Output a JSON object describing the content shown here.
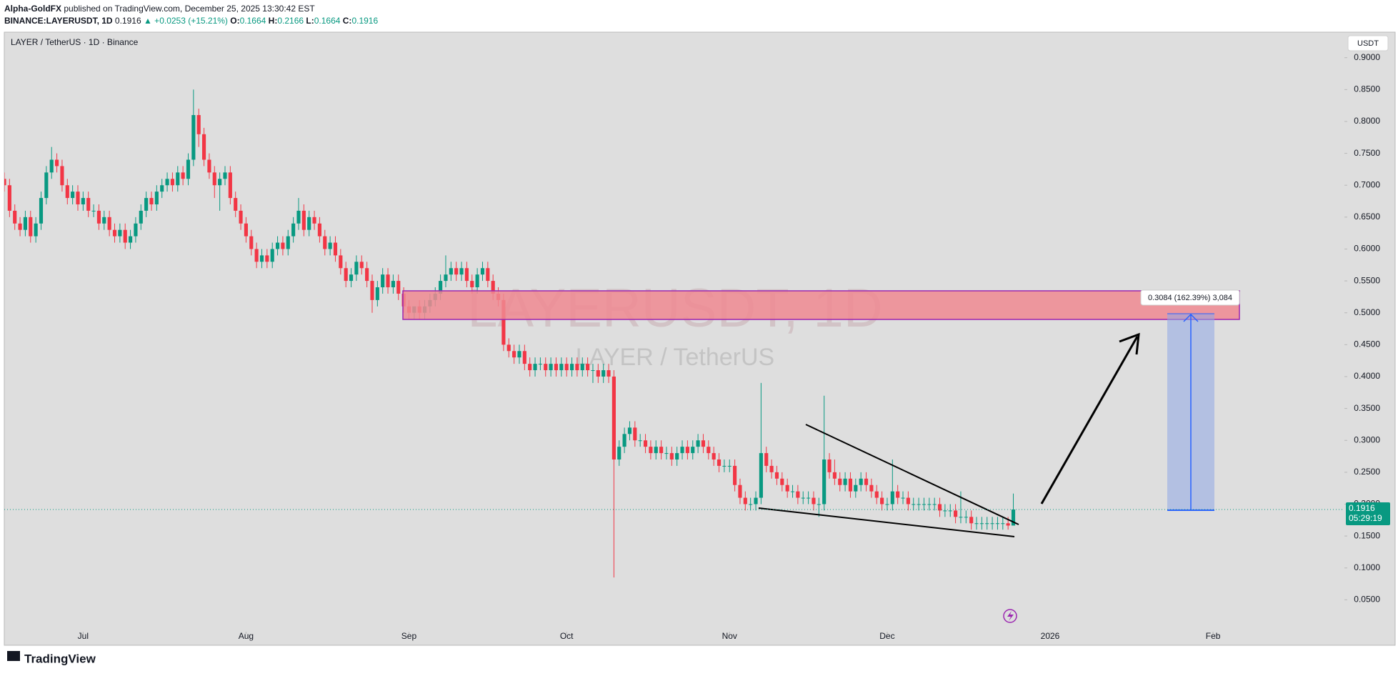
{
  "header": {
    "author": "Alpha-GoldFX",
    "published": "published on TradingView.com, December 25, 2025 13:30:42 EST",
    "symbol": "BINANCE:LAYERUSDT, 1D",
    "price": "0.1916",
    "change": "▲ +0.0253 (+15.21%)",
    "ohlc": [
      {
        "label": "O:",
        "value": "0.1664"
      },
      {
        "label": "H:",
        "value": "0.2166"
      },
      {
        "label": "L:",
        "value": "0.1664"
      },
      {
        "label": "C:",
        "value": "0.1916"
      }
    ]
  },
  "chart_data": {
    "type": "candlestick",
    "legend_text": "LAYER / TetherUS · 1D · Binance",
    "watermark": "LAYERUSDT, 1D",
    "watermark_subtitle": "LAYER / TetherUS",
    "currency_button": "USDT",
    "annotation": "0.3084 (162.39%) 3,084",
    "last_price": 0.1916,
    "countdown": "05:29:19",
    "up_color": "#089981",
    "down_color": "#f23645",
    "grid": false,
    "xlim": [
      0,
      255
    ],
    "ylim": [
      0,
      0.94
    ],
    "xticks": [
      {
        "value": 15,
        "label": "Jul"
      },
      {
        "value": 46,
        "label": "Aug"
      },
      {
        "value": 77,
        "label": "Sep"
      },
      {
        "value": 107,
        "label": "Oct"
      },
      {
        "value": 138,
        "label": "Nov"
      },
      {
        "value": 168,
        "label": "Dec"
      },
      {
        "value": 199,
        "label": "2026"
      },
      {
        "value": 230,
        "label": "Feb"
      }
    ],
    "yticks": [
      {
        "value": 0.05,
        "label": "0.0500"
      },
      {
        "value": 0.1,
        "label": "0.1000"
      },
      {
        "value": 0.15,
        "label": "0.1500"
      },
      {
        "value": 0.2,
        "label": "0.2000"
      },
      {
        "value": 0.25,
        "label": "0.2500"
      },
      {
        "value": 0.3,
        "label": "0.3000"
      },
      {
        "value": 0.35,
        "label": "0.3500"
      },
      {
        "value": 0.4,
        "label": "0.4000"
      },
      {
        "value": 0.45,
        "label": "0.4500"
      },
      {
        "value": 0.5,
        "label": "0.5000"
      },
      {
        "value": 0.55,
        "label": "0.5500"
      },
      {
        "value": 0.6,
        "label": "0.6000"
      },
      {
        "value": 0.65,
        "label": "0.6500"
      },
      {
        "value": 0.7,
        "label": "0.7000"
      },
      {
        "value": 0.75,
        "label": "0.7500"
      },
      {
        "value": 0.8,
        "label": "0.8000"
      },
      {
        "value": 0.85,
        "label": "0.8500"
      },
      {
        "value": 0.9,
        "label": "0.9000"
      }
    ],
    "open": [
      0.71,
      0.7,
      0.66,
      0.64,
      0.63,
      0.65,
      0.62,
      0.64,
      0.68,
      0.72,
      0.74,
      0.73,
      0.7,
      0.68,
      0.69,
      0.67,
      0.68,
      0.66,
      0.66,
      0.64,
      0.65,
      0.63,
      0.62,
      0.63,
      0.61,
      0.62,
      0.64,
      0.66,
      0.68,
      0.67,
      0.69,
      0.7,
      0.71,
      0.7,
      0.72,
      0.71,
      0.74,
      0.81,
      0.78,
      0.74,
      0.72,
      0.7,
      0.71,
      0.72,
      0.68,
      0.66,
      0.64,
      0.62,
      0.6,
      0.58,
      0.59,
      0.58,
      0.6,
      0.61,
      0.6,
      0.62,
      0.64,
      0.66,
      0.63,
      0.65,
      0.64,
      0.62,
      0.6,
      0.61,
      0.59,
      0.57,
      0.55,
      0.56,
      0.58,
      0.57,
      0.55,
      0.52,
      0.54,
      0.56,
      0.54,
      0.55,
      0.53,
      0.51,
      0.5,
      0.51,
      0.5,
      0.51,
      0.52,
      0.53,
      0.55,
      0.56,
      0.57,
      0.56,
      0.57,
      0.55,
      0.54,
      0.56,
      0.57,
      0.55,
      0.53,
      0.52,
      0.45,
      0.44,
      0.43,
      0.44,
      0.42,
      0.41,
      0.42,
      0.42,
      0.41,
      0.42,
      0.41,
      0.42,
      0.41,
      0.42,
      0.41,
      0.42,
      0.41,
      0.41,
      0.4,
      0.41,
      0.4,
      0.27,
      0.29,
      0.31,
      0.32,
      0.3,
      0.3,
      0.29,
      0.28,
      0.29,
      0.28,
      0.28,
      0.27,
      0.28,
      0.29,
      0.28,
      0.29,
      0.3,
      0.29,
      0.28,
      0.27,
      0.26,
      0.26,
      0.26,
      0.23,
      0.21,
      0.2,
      0.2,
      0.21,
      0.28,
      0.26,
      0.25,
      0.24,
      0.23,
      0.22,
      0.22,
      0.21,
      0.21,
      0.21,
      0.2,
      0.2,
      0.27,
      0.25,
      0.24,
      0.23,
      0.24,
      0.22,
      0.23,
      0.24,
      0.23,
      0.22,
      0.21,
      0.2,
      0.2,
      0.22,
      0.21,
      0.21,
      0.2,
      0.2,
      0.2,
      0.2,
      0.2,
      0.2,
      0.19,
      0.19,
      0.19,
      0.18,
      0.18,
      0.18,
      0.17,
      0.17,
      0.17,
      0.17,
      0.17,
      0.17,
      0.17,
      0.1664
    ],
    "high": [
      0.72,
      0.71,
      0.67,
      0.65,
      0.66,
      0.66,
      0.65,
      0.69,
      0.73,
      0.76,
      0.75,
      0.74,
      0.71,
      0.7,
      0.7,
      0.69,
      0.69,
      0.67,
      0.67,
      0.66,
      0.66,
      0.64,
      0.64,
      0.64,
      0.63,
      0.65,
      0.67,
      0.69,
      0.69,
      0.7,
      0.71,
      0.72,
      0.72,
      0.73,
      0.73,
      0.75,
      0.85,
      0.82,
      0.79,
      0.75,
      0.73,
      0.72,
      0.73,
      0.73,
      0.69,
      0.67,
      0.65,
      0.63,
      0.61,
      0.6,
      0.6,
      0.61,
      0.62,
      0.62,
      0.63,
      0.65,
      0.68,
      0.67,
      0.66,
      0.66,
      0.65,
      0.63,
      0.62,
      0.62,
      0.6,
      0.58,
      0.57,
      0.59,
      0.59,
      0.58,
      0.56,
      0.55,
      0.57,
      0.57,
      0.56,
      0.56,
      0.54,
      0.52,
      0.51,
      0.52,
      0.52,
      0.53,
      0.54,
      0.56,
      0.59,
      0.58,
      0.58,
      0.58,
      0.58,
      0.56,
      0.57,
      0.58,
      0.58,
      0.56,
      0.54,
      0.53,
      0.46,
      0.45,
      0.45,
      0.45,
      0.43,
      0.43,
      0.43,
      0.43,
      0.43,
      0.43,
      0.43,
      0.43,
      0.43,
      0.43,
      0.43,
      0.43,
      0.42,
      0.42,
      0.42,
      0.42,
      0.41,
      0.3,
      0.32,
      0.33,
      0.33,
      0.31,
      0.31,
      0.3,
      0.3,
      0.3,
      0.29,
      0.29,
      0.29,
      0.3,
      0.3,
      0.3,
      0.31,
      0.31,
      0.3,
      0.29,
      0.28,
      0.27,
      0.27,
      0.27,
      0.24,
      0.22,
      0.21,
      0.22,
      0.39,
      0.29,
      0.27,
      0.26,
      0.25,
      0.24,
      0.23,
      0.23,
      0.22,
      0.22,
      0.22,
      0.21,
      0.37,
      0.28,
      0.27,
      0.25,
      0.25,
      0.25,
      0.24,
      0.25,
      0.25,
      0.24,
      0.23,
      0.22,
      0.21,
      0.27,
      0.23,
      0.22,
      0.22,
      0.21,
      0.21,
      0.21,
      0.21,
      0.21,
      0.21,
      0.2,
      0.2,
      0.2,
      0.22,
      0.19,
      0.19,
      0.18,
      0.18,
      0.18,
      0.18,
      0.18,
      0.18,
      0.18,
      0.2166
    ],
    "low": [
      0.69,
      0.65,
      0.63,
      0.62,
      0.62,
      0.61,
      0.61,
      0.63,
      0.67,
      0.71,
      0.72,
      0.69,
      0.67,
      0.67,
      0.66,
      0.66,
      0.65,
      0.65,
      0.63,
      0.63,
      0.62,
      0.61,
      0.61,
      0.6,
      0.6,
      0.61,
      0.63,
      0.65,
      0.66,
      0.66,
      0.68,
      0.69,
      0.69,
      0.69,
      0.7,
      0.7,
      0.73,
      0.76,
      0.73,
      0.71,
      0.68,
      0.66,
      0.7,
      0.67,
      0.65,
      0.63,
      0.61,
      0.59,
      0.57,
      0.57,
      0.57,
      0.57,
      0.59,
      0.59,
      0.59,
      0.61,
      0.63,
      0.62,
      0.62,
      0.63,
      0.61,
      0.59,
      0.59,
      0.58,
      0.56,
      0.54,
      0.54,
      0.55,
      0.56,
      0.54,
      0.5,
      0.51,
      0.53,
      0.53,
      0.53,
      0.52,
      0.5,
      0.49,
      0.49,
      0.49,
      0.49,
      0.5,
      0.51,
      0.52,
      0.54,
      0.55,
      0.55,
      0.55,
      0.54,
      0.53,
      0.53,
      0.55,
      0.54,
      0.52,
      0.51,
      0.44,
      0.43,
      0.42,
      0.42,
      0.41,
      0.4,
      0.4,
      0.41,
      0.4,
      0.4,
      0.4,
      0.4,
      0.4,
      0.4,
      0.4,
      0.4,
      0.4,
      0.39,
      0.39,
      0.39,
      0.39,
      0.085,
      0.26,
      0.28,
      0.3,
      0.29,
      0.29,
      0.28,
      0.27,
      0.27,
      0.27,
      0.27,
      0.26,
      0.26,
      0.27,
      0.27,
      0.27,
      0.28,
      0.28,
      0.27,
      0.26,
      0.25,
      0.25,
      0.25,
      0.22,
      0.2,
      0.19,
      0.19,
      0.19,
      0.2,
      0.25,
      0.24,
      0.23,
      0.22,
      0.21,
      0.21,
      0.2,
      0.2,
      0.2,
      0.19,
      0.18,
      0.19,
      0.24,
      0.23,
      0.22,
      0.22,
      0.21,
      0.21,
      0.22,
      0.22,
      0.21,
      0.2,
      0.19,
      0.19,
      0.19,
      0.2,
      0.2,
      0.19,
      0.19,
      0.19,
      0.19,
      0.19,
      0.19,
      0.18,
      0.18,
      0.18,
      0.17,
      0.17,
      0.17,
      0.16,
      0.16,
      0.16,
      0.16,
      0.16,
      0.16,
      0.16,
      0.16,
      0.1664
    ],
    "close": [
      0.7,
      0.66,
      0.64,
      0.63,
      0.65,
      0.62,
      0.64,
      0.68,
      0.72,
      0.74,
      0.73,
      0.7,
      0.68,
      0.69,
      0.67,
      0.68,
      0.66,
      0.66,
      0.64,
      0.65,
      0.63,
      0.62,
      0.63,
      0.61,
      0.62,
      0.64,
      0.66,
      0.68,
      0.67,
      0.69,
      0.7,
      0.71,
      0.7,
      0.72,
      0.71,
      0.74,
      0.81,
      0.78,
      0.74,
      0.72,
      0.7,
      0.71,
      0.72,
      0.68,
      0.66,
      0.64,
      0.62,
      0.6,
      0.58,
      0.59,
      0.58,
      0.6,
      0.61,
      0.6,
      0.62,
      0.64,
      0.66,
      0.63,
      0.65,
      0.64,
      0.62,
      0.6,
      0.61,
      0.59,
      0.57,
      0.55,
      0.56,
      0.58,
      0.57,
      0.55,
      0.52,
      0.54,
      0.56,
      0.54,
      0.55,
      0.53,
      0.51,
      0.5,
      0.51,
      0.5,
      0.51,
      0.52,
      0.53,
      0.55,
      0.56,
      0.57,
      0.56,
      0.57,
      0.55,
      0.54,
      0.56,
      0.57,
      0.55,
      0.53,
      0.52,
      0.45,
      0.44,
      0.43,
      0.44,
      0.42,
      0.41,
      0.42,
      0.42,
      0.41,
      0.42,
      0.41,
      0.42,
      0.41,
      0.42,
      0.41,
      0.42,
      0.41,
      0.41,
      0.4,
      0.41,
      0.4,
      0.27,
      0.29,
      0.31,
      0.32,
      0.3,
      0.3,
      0.29,
      0.28,
      0.29,
      0.28,
      0.28,
      0.27,
      0.28,
      0.29,
      0.28,
      0.29,
      0.3,
      0.29,
      0.28,
      0.27,
      0.26,
      0.26,
      0.26,
      0.23,
      0.21,
      0.2,
      0.2,
      0.21,
      0.28,
      0.26,
      0.25,
      0.24,
      0.23,
      0.22,
      0.22,
      0.21,
      0.21,
      0.21,
      0.2,
      0.2,
      0.27,
      0.25,
      0.24,
      0.23,
      0.24,
      0.22,
      0.23,
      0.24,
      0.23,
      0.22,
      0.21,
      0.2,
      0.2,
      0.22,
      0.21,
      0.21,
      0.2,
      0.2,
      0.2,
      0.2,
      0.2,
      0.2,
      0.19,
      0.19,
      0.19,
      0.18,
      0.18,
      0.18,
      0.17,
      0.17,
      0.17,
      0.17,
      0.17,
      0.17,
      0.17,
      0.1664,
      0.1916
    ]
  },
  "footer": {
    "brand": "TradingView"
  }
}
